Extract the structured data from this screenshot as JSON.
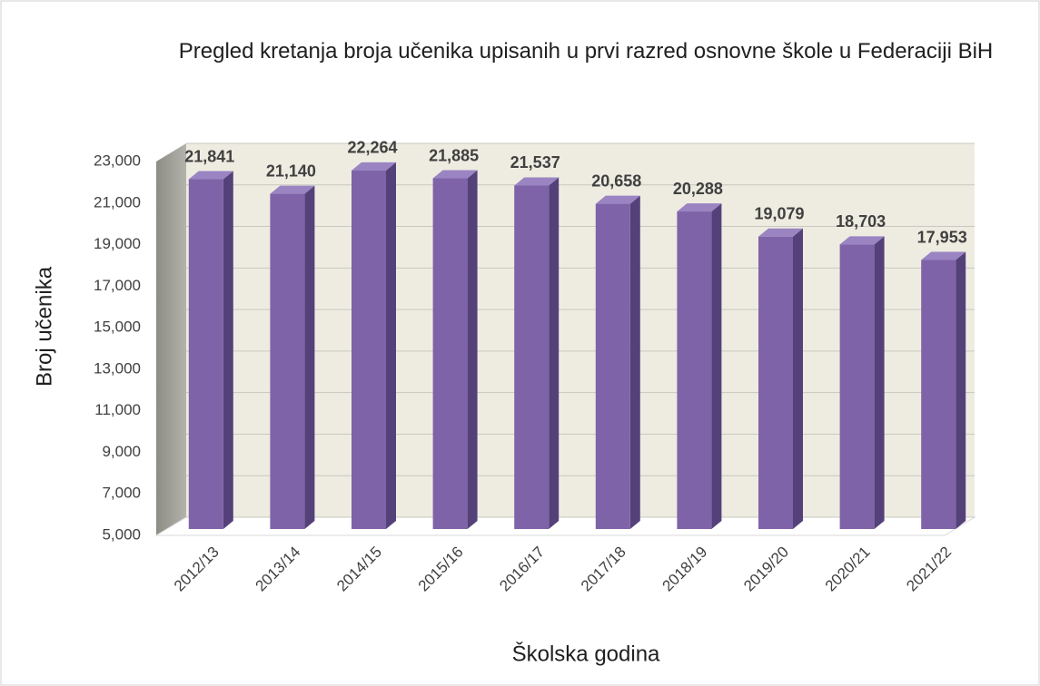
{
  "chart_data": {
    "type": "bar3d",
    "title": "Pregled kretanja broja učenika upisanih u prvi razred osnovne škole u Federaciji BiH",
    "x_label": "Školska godina",
    "y_label": "Broj učenika",
    "categories": [
      "2012/13",
      "2013/14",
      "2014/15",
      "2015/16",
      "2016/17",
      "2017/18",
      "2018/19",
      "2019/20",
      "2020/21",
      "2021/22"
    ],
    "values": [
      21841,
      21140,
      22264,
      21885,
      21537,
      20658,
      20288,
      19079,
      18703,
      17953
    ],
    "value_labels": [
      "21,841",
      "21,140",
      "22,264",
      "21,885",
      "21,537",
      "20,658",
      "20,288",
      "19,079",
      "18,703",
      "17,953"
    ],
    "color": "#7f63a8",
    "ylim": [
      5000,
      23000
    ],
    "yticks": [
      {
        "value": 5000,
        "label": "5,000"
      },
      {
        "value": 7000,
        "label": "7,000"
      },
      {
        "value": 9000,
        "label": "9,000"
      },
      {
        "value": 11000,
        "label": "11,000"
      },
      {
        "value": 13000,
        "label": "13,000"
      },
      {
        "value": 15000,
        "label": "15,000"
      },
      {
        "value": 17000,
        "label": "17,000"
      },
      {
        "value": 19000,
        "label": "19,000"
      },
      {
        "value": 21000,
        "label": "21,000"
      },
      {
        "value": 23000,
        "label": "23,000"
      }
    ],
    "grid": true
  }
}
